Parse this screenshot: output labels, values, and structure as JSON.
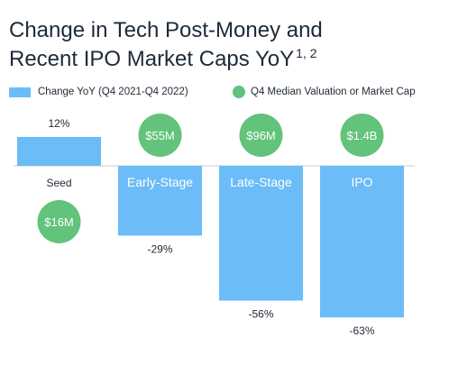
{
  "title_line1": "Change in Tech Post-Money and",
  "title_line2": "Recent IPO Market Caps YoY",
  "title_sup": "1, 2",
  "legend": {
    "bar_label": "Change YoY (Q4 2021-Q4 2022)",
    "dot_label": "Q4 Median Valuation or Market Cap"
  },
  "colors": {
    "bar": "#6bbcf7",
    "dot": "#62c37a",
    "baseline": "#c9ced6",
    "text": "#1f2a36"
  },
  "chart_data": {
    "type": "bar",
    "categories": [
      "Seed",
      "Early-Stage",
      "Late-Stage",
      "IPO"
    ],
    "series": [
      {
        "name": "Change YoY (Q4 2021-Q4 2022)",
        "values": [
          12,
          -29,
          -56,
          -63
        ],
        "value_labels": [
          "12%",
          "-29%",
          "-56%",
          "-63%"
        ]
      }
    ],
    "markers": {
      "name": "Q4 Median Valuation or Market Cap",
      "labels": [
        "$16M",
        "$55M",
        "$96M",
        "$1.4B"
      ]
    },
    "ylim": [
      -63,
      12
    ]
  }
}
